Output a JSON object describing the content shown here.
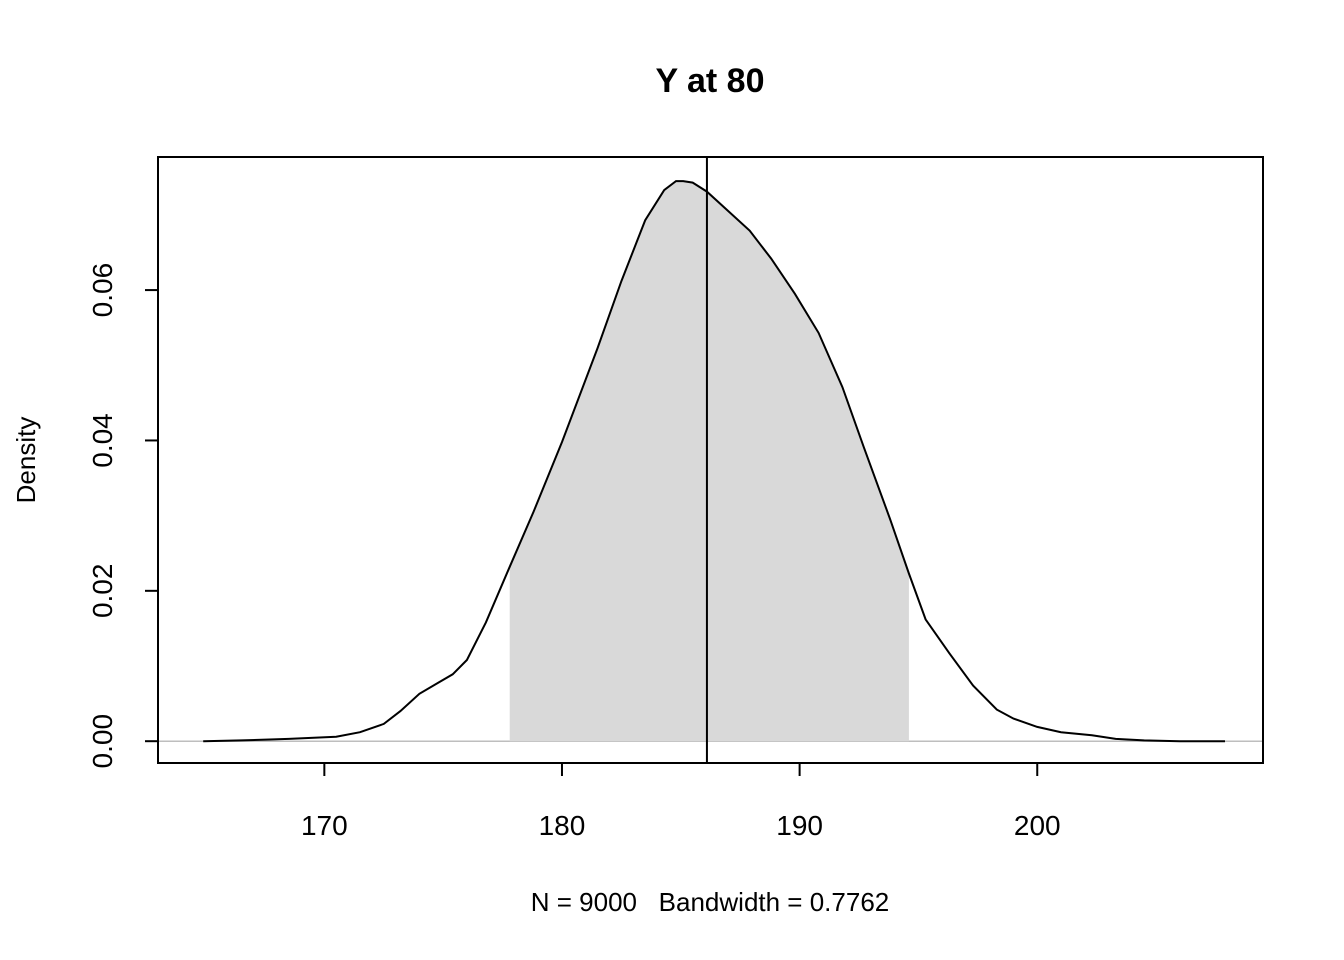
{
  "chart_data": {
    "type": "area",
    "title": "Y at 80",
    "xlabel": "N = 9000   Bandwidth = 0.7762",
    "ylabel": "Density",
    "xlim": [
      163.0,
      209.5
    ],
    "ylim": [
      -0.0029,
      0.0777
    ],
    "x_ticks": [
      170,
      180,
      190,
      200
    ],
    "y_ticks": [
      0.0,
      0.02,
      0.04,
      0.06
    ],
    "x_tick_labels": [
      "170",
      "180",
      "190",
      "200"
    ],
    "y_tick_labels": [
      "0.00",
      "0.02",
      "0.04",
      "0.06"
    ],
    "vertical_line_x": 186.1,
    "shaded_interval": [
      177.8,
      194.6
    ],
    "shade_color": "#d9d9d9",
    "line_color": "#000000",
    "baseline_color": "#bebebe",
    "grid": false,
    "series": [
      {
        "x": [
          164.9,
          166.5,
          168.5,
          170.5,
          171.5,
          172.5,
          173.2,
          174.0,
          174.8,
          175.4,
          176.0,
          176.8,
          177.8,
          178.8,
          180.0,
          181.5,
          182.5,
          183.5,
          184.3,
          184.8,
          185.1,
          185.5,
          186.1,
          187.0,
          187.9,
          188.8,
          189.8,
          190.8,
          191.8,
          192.7,
          193.8,
          194.6,
          195.3,
          196.3,
          197.3,
          198.3,
          199.0,
          200.0,
          201.0,
          202.3,
          203.3,
          204.5,
          206.0,
          207.9
        ],
        "y": [
          0.0,
          0.0001,
          0.0003,
          0.0006,
          0.0012,
          0.0023,
          0.004,
          0.0063,
          0.0078,
          0.0089,
          0.0108,
          0.0158,
          0.0232,
          0.0305,
          0.0398,
          0.0523,
          0.0612,
          0.0693,
          0.0733,
          0.0745,
          0.0745,
          0.0743,
          0.0731,
          0.0705,
          0.0679,
          0.0642,
          0.0595,
          0.0543,
          0.0471,
          0.0391,
          0.0296,
          0.0223,
          0.0162,
          0.0117,
          0.0074,
          0.0042,
          0.003,
          0.0019,
          0.0012,
          0.0008,
          0.0003,
          0.0001,
          0.0,
          0.0
        ]
      }
    ]
  }
}
